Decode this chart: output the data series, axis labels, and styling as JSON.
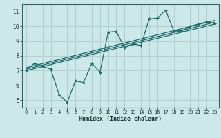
{
  "xlabel": "Humidex (Indice chaleur)",
  "xlim": [
    -0.5,
    23.5
  ],
  "ylim": [
    4.5,
    11.5
  ],
  "xticks": [
    0,
    1,
    2,
    3,
    4,
    5,
    6,
    7,
    8,
    9,
    10,
    11,
    12,
    13,
    14,
    15,
    16,
    17,
    18,
    19,
    20,
    21,
    22,
    23
  ],
  "yticks": [
    5,
    6,
    7,
    8,
    9,
    10,
    11
  ],
  "bg_color": "#cce8e8",
  "grid_color": "#b0d0d0",
  "line_color": "#1a6b6b",
  "data_x": [
    0,
    1,
    2,
    3,
    4,
    5,
    6,
    7,
    8,
    9,
    10,
    11,
    12,
    13,
    14,
    15,
    16,
    17,
    18,
    19,
    20,
    21,
    22,
    23
  ],
  "data_y": [
    7.0,
    7.5,
    7.3,
    7.1,
    5.4,
    4.85,
    6.3,
    6.2,
    7.5,
    6.9,
    9.6,
    9.65,
    8.55,
    8.8,
    8.7,
    10.5,
    10.55,
    11.1,
    9.7,
    9.7,
    10.0,
    10.15,
    10.3,
    10.2
  ],
  "trend1_y_start": 7.0,
  "trend1_y_end": 10.15,
  "trend2_y_start": 7.1,
  "trend2_y_end": 10.27,
  "trend3_y_start": 7.2,
  "trend3_y_end": 10.4,
  "tick_fontsize": 5.0,
  "xlabel_fontsize": 6.0
}
